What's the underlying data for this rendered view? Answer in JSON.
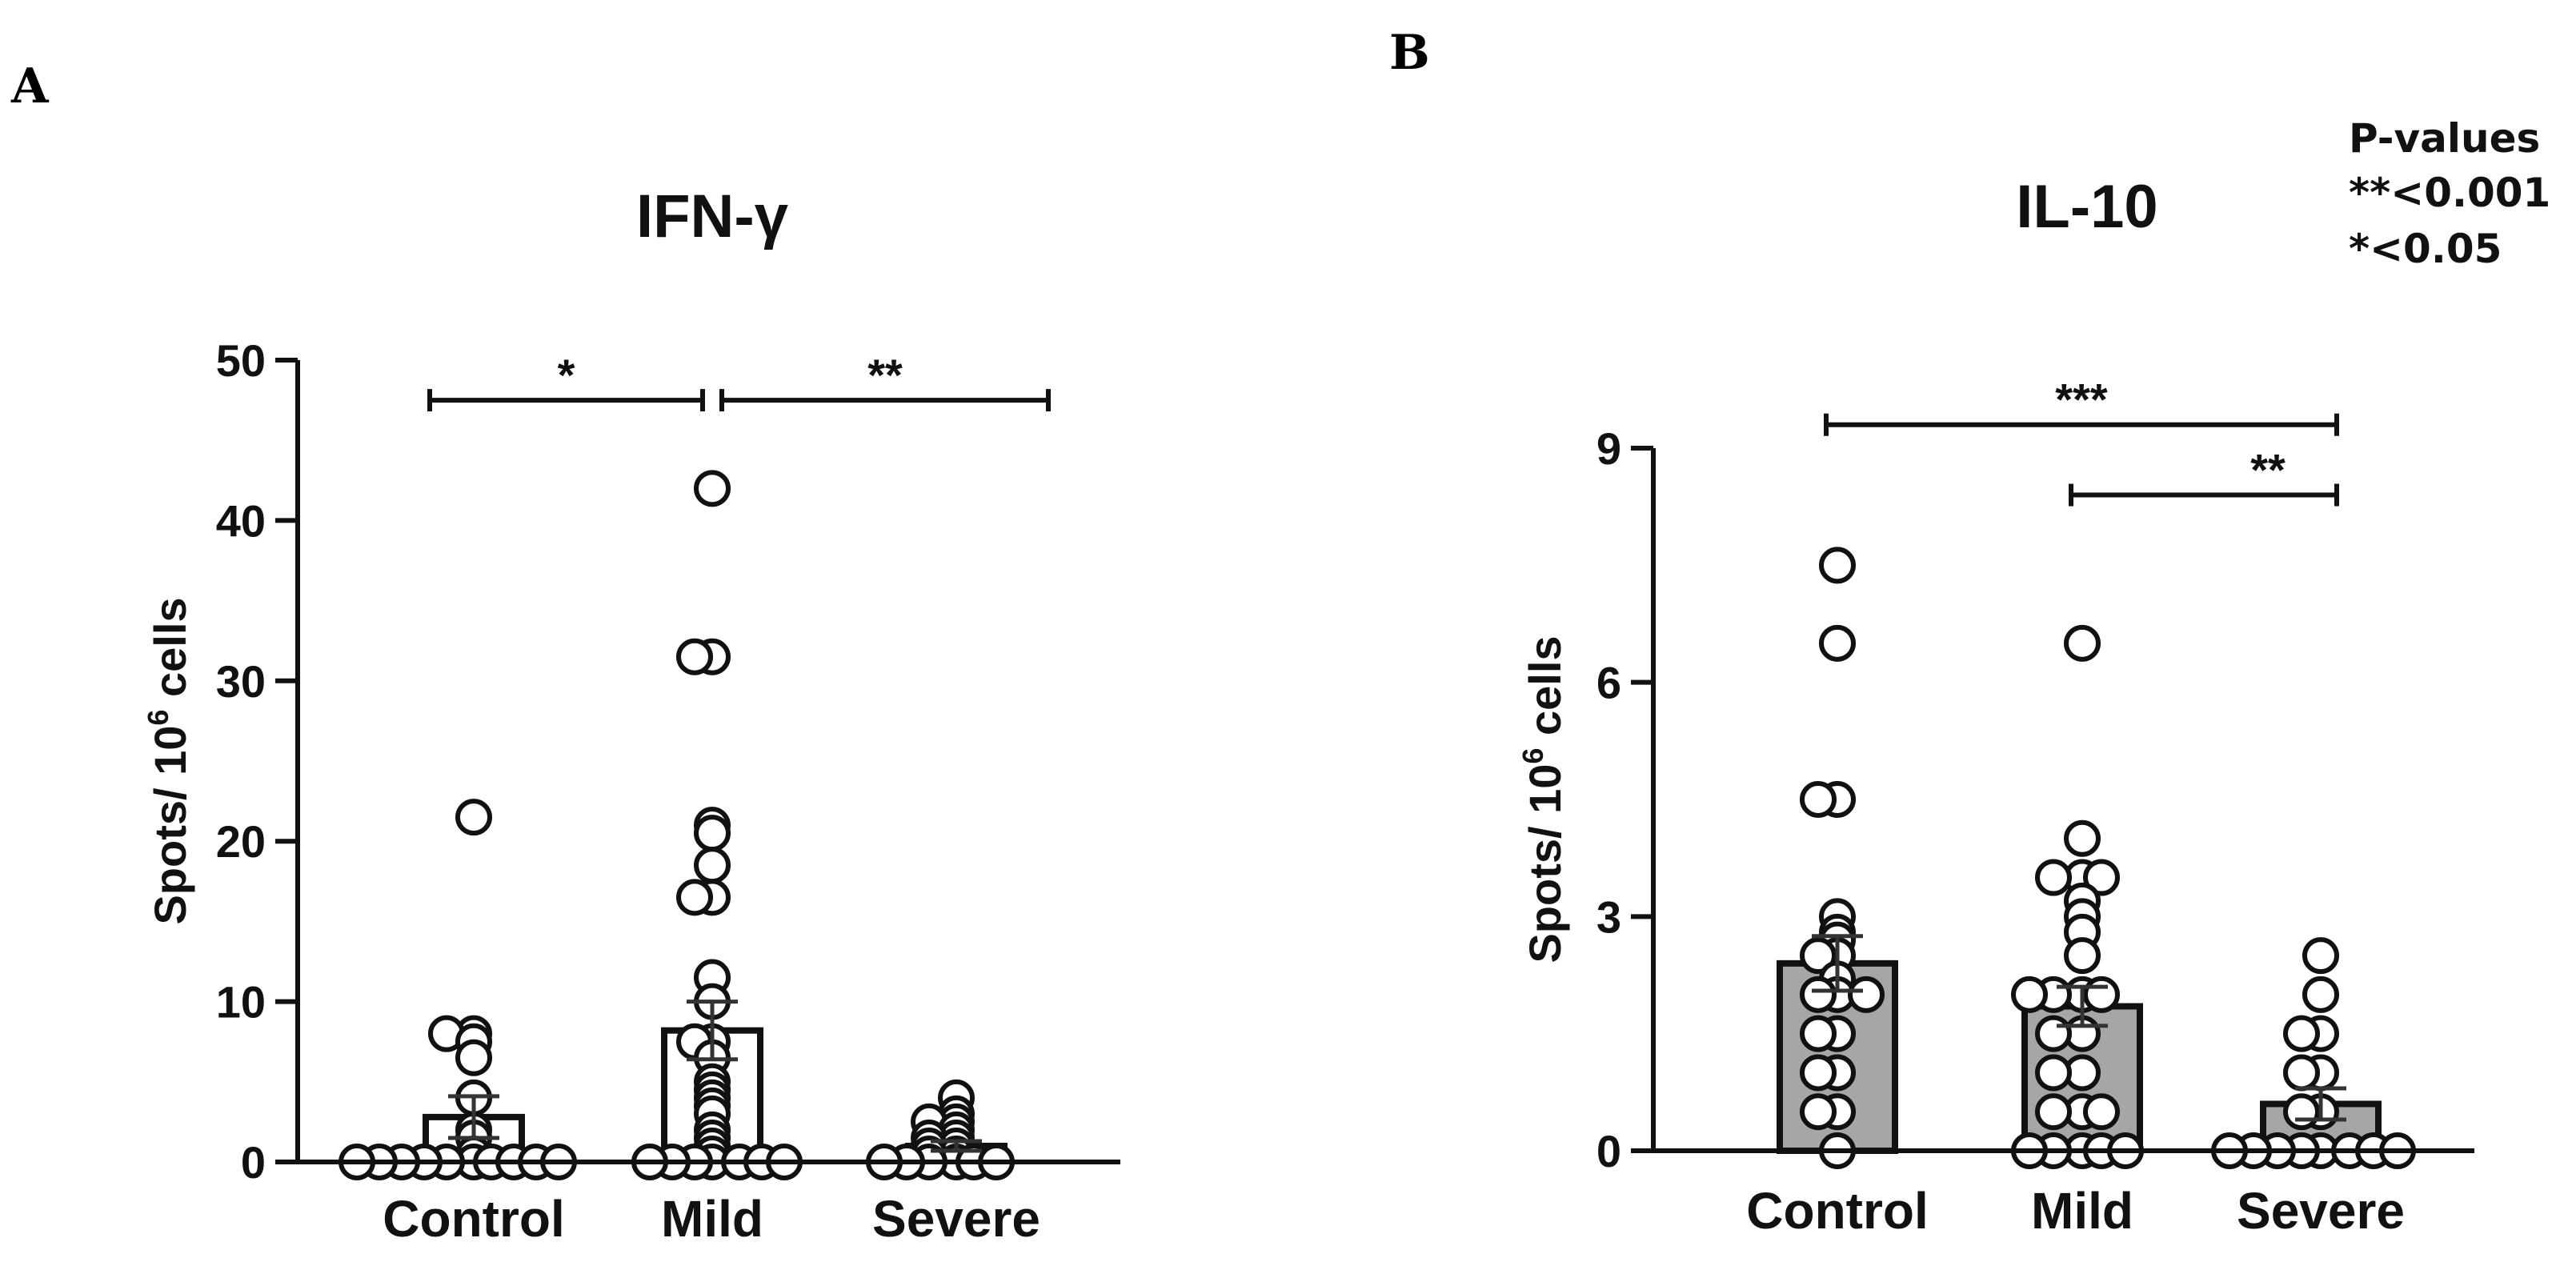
{
  "panels": [
    {
      "letter": "A"
    },
    {
      "letter": "B"
    }
  ],
  "legend": {
    "title": "P-values",
    "lines": [
      "**<0.001",
      "*<0.05"
    ]
  },
  "chart_data": [
    {
      "type": "bar",
      "title": "IFN-γ",
      "ylabel": "Spots/ 10",
      "ylabel_sup": "6",
      "ylabel_suffix": " cells",
      "ylim": [
        0,
        50
      ],
      "yticks": [
        "0",
        "10",
        "20",
        "30",
        "40",
        "50"
      ],
      "categories": [
        "Control",
        "Mild",
        "Severe"
      ],
      "values": [
        2.8,
        8.2,
        1.0
      ],
      "sem": [
        1.3,
        1.8,
        0.3
      ],
      "bar_color": "#ffffff",
      "points": [
        [
          21.5,
          8,
          8,
          7.5,
          6.5,
          4,
          2,
          1.5,
          0.5,
          0,
          0,
          0,
          0,
          0,
          0,
          0,
          0,
          0,
          0
        ],
        [
          42,
          31.5,
          31.5,
          21,
          20.5,
          18.5,
          16.5,
          16.5,
          11.5,
          10,
          7.5,
          7.5,
          6.5,
          5,
          4.5,
          4,
          3.5,
          3,
          2,
          1.5,
          1,
          0.5,
          0,
          0,
          0,
          0,
          0,
          0,
          0
        ],
        [
          4,
          3,
          2.5,
          2.5,
          2,
          1.5,
          1.5,
          1,
          1,
          0.5,
          0.5,
          0,
          0,
          0,
          0,
          0,
          0
        ]
      ],
      "significance": [
        {
          "from": 0,
          "to": 1,
          "label": "*",
          "y": 47.5
        },
        {
          "from": 1,
          "to": 2,
          "label": "**",
          "y": 47.5
        }
      ]
    },
    {
      "type": "bar",
      "title": "IL-10",
      "ylabel": "Spots/ 10",
      "ylabel_sup": "6",
      "ylabel_suffix": " cells",
      "ylim": [
        0,
        9
      ],
      "yticks": [
        "0",
        "3",
        "6",
        "9"
      ],
      "categories": [
        "Control",
        "Mild",
        "Severe"
      ],
      "values": [
        2.4,
        1.85,
        0.6
      ],
      "sem": [
        0.35,
        0.25,
        0.2
      ],
      "bar_color": "#a6a6a6",
      "points": [
        [
          7.5,
          6.5,
          4.5,
          4.5,
          3,
          2.8,
          2.7,
          2.5,
          2.5,
          2.2,
          2,
          2,
          2,
          1.5,
          1.5,
          1,
          1,
          0.5,
          0.5,
          0
        ],
        [
          6.5,
          4,
          3.5,
          3.5,
          3.5,
          3.2,
          3,
          2.8,
          2.5,
          2,
          2,
          2,
          2,
          1.5,
          1.5,
          1,
          1,
          0.5,
          0.5,
          0.5,
          0,
          0,
          0,
          0,
          0
        ],
        [
          2.5,
          2,
          1.5,
          1.5,
          1,
          1,
          0.5,
          0.5,
          0,
          0,
          0,
          0,
          0,
          0,
          0,
          0
        ]
      ],
      "significance": [
        {
          "from": 0,
          "to": 2,
          "label": "***",
          "y": 9.3
        },
        {
          "from": 1,
          "to": 2,
          "label": "**",
          "y": 8.4
        }
      ]
    }
  ]
}
